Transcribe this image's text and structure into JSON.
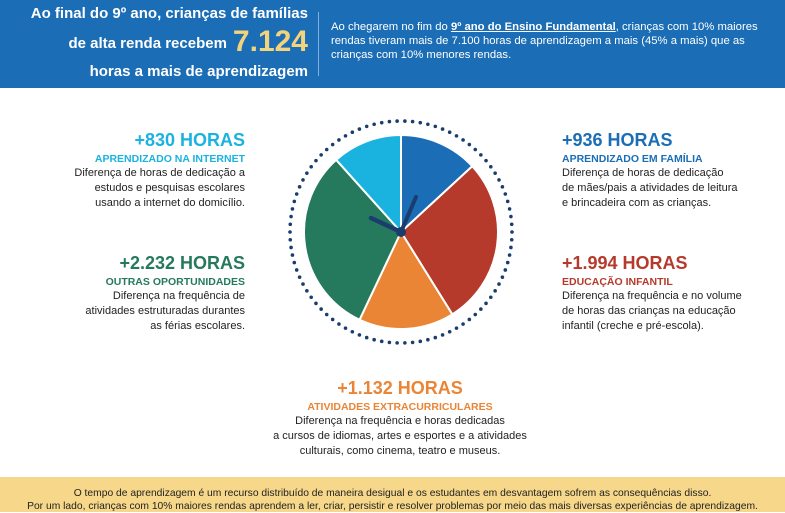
{
  "header": {
    "line1": "Ao final do 9º ano, crianças de famílias",
    "line2": "de alta renda recebem",
    "big_number": "7.124",
    "line3": "horas a mais de aprendizagem",
    "right_pre": "Ao chegarem no fim do ",
    "right_link": "9º ano do Ensino Fundamental",
    "right_post": ", crianças com 10% maiores rendas tiveram mais de 7.100 horas de aprendizagem a mais  (45% a mais) que as crianças com 10% menores rendas."
  },
  "items": [
    {
      "value": "+830 HORAS",
      "title": "APRENDIZADO NA INTERNET",
      "desc_lines": [
        "Diferença de horas de dedicação a",
        "estudos e pesquisas escolares",
        "usando a internet do domicílio."
      ],
      "color": "#1ab3e0"
    },
    {
      "value": "+936 HORAS",
      "title": "APRENDIZADO EM FAMÍLIA",
      "desc_lines": [
        "Diferença de horas de dedicação",
        "de mães/pais a atividades de leitura",
        "e brincadeira com as crianças."
      ],
      "color": "#1b6db5"
    },
    {
      "value": "+2.232 HORAS",
      "title": "OUTRAS OPORTUNIDADES",
      "desc_lines": [
        "Diferença na frequência de",
        "atividades estruturadas durantes",
        "as férias escolares."
      ],
      "color": "#257a5e"
    },
    {
      "value": "+1.994 HORAS",
      "title": "EDUCAÇÃO INFANTIL",
      "desc_lines": [
        "Diferença na frequência e no volume",
        "de horas das crianças na educação",
        "infantil (creche e pré-escola)."
      ],
      "color": "#b63a2b"
    },
    {
      "value": "+1.132 HORAS",
      "title": "ATIVIDADES EXTRACURRICULARES",
      "desc_lines": [
        "Diferença na frequência e horas dedicadas",
        "a cursos de idiomas, artes  e esportes e a atividades",
        "culturais, como cinema, teatro e museus."
      ],
      "color": "#ea8535"
    }
  ],
  "clock_slices": [
    {
      "name": "family",
      "value": 936,
      "color": "#1b6db5"
    },
    {
      "name": "early-education",
      "value": 1994,
      "color": "#b63a2b"
    },
    {
      "name": "extracurricular",
      "value": 1132,
      "color": "#ea8535"
    },
    {
      "name": "other-opportunities",
      "value": 2232,
      "color": "#257a5e"
    },
    {
      "name": "internet",
      "value": 830,
      "color": "#1ab3e0"
    }
  ],
  "footer": {
    "line1": "O tempo de aprendizagem é um recurso distribuído de maneira desigual e os estudantes em desvantagem sofrem as consequências disso.",
    "line2": "Por um lado, crianças com 10% maiores rendas aprendem a ler, criar, persistir e resolver problemas por meio das mais diversas experiências de aprendizagem."
  },
  "colors": {
    "header_bg": "#1b6db5",
    "highlight": "#f3d37c",
    "footer_bg": "#f7d88a",
    "dots": "#1a3d6e",
    "hands": "#1a3d6e"
  }
}
